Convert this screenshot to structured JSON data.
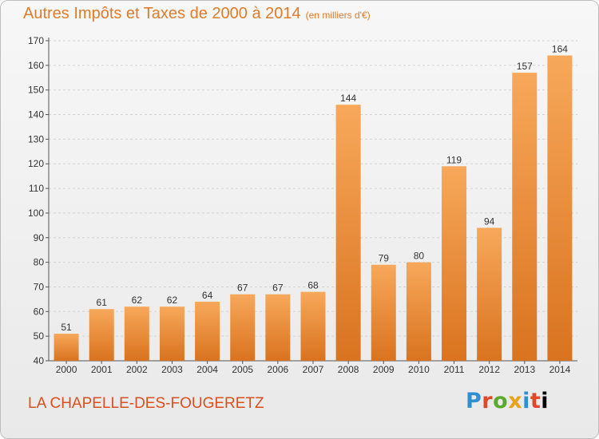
{
  "title": "Autres Impôts et Taxes de 2000 à 2014",
  "unit": "(en milliers d'€)",
  "location": "LA CHAPELLE-DES-FOUGERETZ",
  "logo_letters": [
    "P",
    "r",
    "o",
    "x",
    "i",
    "t",
    "i"
  ],
  "colors": {
    "title": "#e07b2a",
    "location": "#d9501e",
    "bar_light": "#f7a85a",
    "bar_dark": "#d9731f"
  },
  "chart_data": {
    "type": "bar",
    "title": "Autres Impôts et Taxes de 2000 à 2014",
    "subtitle": "(en milliers d'€)",
    "categories": [
      "2000",
      "2001",
      "2002",
      "2003",
      "2004",
      "2005",
      "2006",
      "2007",
      "2008",
      "2009",
      "2010",
      "2011",
      "2012",
      "2013",
      "2014"
    ],
    "values": [
      51,
      61,
      62,
      62,
      64,
      67,
      67,
      68,
      144,
      79,
      80,
      119,
      94,
      157,
      164
    ],
    "xlabel": "",
    "ylabel": "",
    "ylim": [
      40,
      170
    ],
    "yticks": [
      40,
      50,
      60,
      70,
      80,
      90,
      100,
      110,
      120,
      130,
      140,
      150,
      160,
      170
    ],
    "grid": true
  }
}
